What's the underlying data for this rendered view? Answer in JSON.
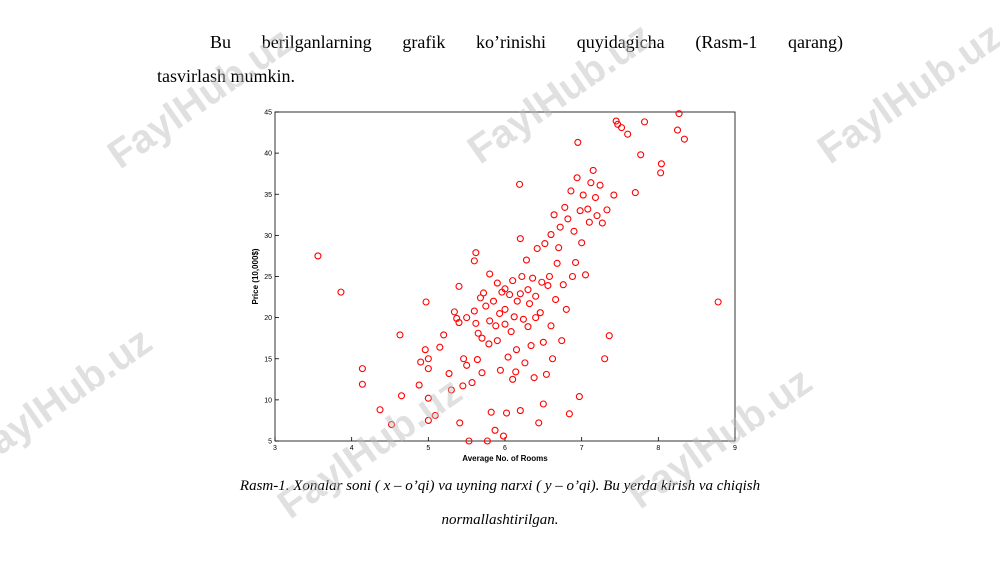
{
  "paragraph": [
    "Bu berilganlarning grafik ko’rinishi quyidagicha (Rasm-1 qarang)",
    "tasvirlash mumkin."
  ],
  "caption": [
    "Rasm-1. Xonalar soni ( x – o’qi) va uyning narxi ( y – o’qi). Bu yerda kirish va chiqish",
    "normallashtirilgan."
  ],
  "watermark": "FaylHub.uz",
  "chart_data": {
    "type": "scatter",
    "xlabel": "Average No. of Rooms",
    "ylabel": "Price (10,000$)",
    "color": "#ff0000",
    "xlim": [
      3,
      9
    ],
    "ylim": [
      5,
      45
    ],
    "xticks": [
      3,
      4,
      5,
      6,
      7,
      8,
      9
    ],
    "yticks": [
      5,
      10,
      15,
      20,
      25,
      30,
      35,
      40,
      45
    ],
    "x": [
      3.56,
      3.86,
      4.14,
      4.14,
      4.37,
      4.52,
      4.63,
      4.65,
      4.88,
      4.9,
      4.96,
      4.97,
      5.0,
      5.0,
      5.0,
      5.0,
      5.09,
      5.15,
      5.2,
      5.27,
      5.3,
      5.34,
      5.37,
      5.4,
      5.4,
      5.41,
      5.45,
      5.46,
      5.5,
      5.53,
      5.57,
      5.6,
      5.62,
      5.6,
      5.62,
      5.64,
      5.65,
      5.68,
      5.7,
      5.72,
      5.75,
      5.77,
      5.79,
      5.8,
      5.82,
      5.85,
      5.87,
      5.88,
      5.9,
      5.93,
      5.94,
      5.96,
      5.98,
      6.0,
      6.0,
      6.02,
      6.04,
      6.06,
      6.08,
      6.1,
      6.12,
      6.14,
      6.16,
      6.19,
      6.2,
      6.2,
      6.22,
      6.24,
      6.26,
      6.28,
      6.3,
      6.32,
      6.34,
      6.36,
      6.38,
      6.4,
      6.42,
      6.44,
      6.46,
      6.48,
      6.5,
      6.52,
      6.54,
      6.56,
      6.58,
      6.6,
      6.62,
      6.64,
      6.66,
      6.68,
      6.7,
      6.72,
      6.74,
      6.76,
      6.78,
      6.8,
      6.82,
      6.84,
      6.86,
      6.88,
      6.9,
      6.92,
      6.94,
      6.95,
      6.97,
      6.98,
      7.0,
      7.02,
      7.05,
      7.08,
      7.1,
      7.12,
      7.15,
      7.18,
      7.2,
      7.24,
      7.27,
      7.3,
      7.33,
      7.36,
      7.42,
      7.45,
      7.47,
      7.52,
      7.6,
      7.7,
      7.77,
      7.82,
      8.03,
      8.04,
      8.25,
      8.27,
      8.34,
      8.78,
      6.5,
      6.1,
      5.9,
      6.3,
      6.2,
      5.8,
      6.0,
      6.4,
      6.15,
      5.7,
      6.6,
      5.5
    ],
    "y": [
      27.5,
      23.1,
      13.8,
      11.9,
      8.8,
      7.0,
      17.9,
      10.5,
      11.8,
      14.6,
      16.1,
      21.9,
      15.0,
      13.8,
      7.5,
      10.2,
      8.1,
      16.4,
      17.9,
      13.2,
      11.2,
      20.7,
      19.9,
      23.8,
      19.4,
      7.2,
      11.7,
      15.0,
      14.2,
      5.0,
      12.1,
      26.9,
      27.9,
      20.8,
      19.3,
      14.9,
      18.1,
      22.4,
      13.3,
      23.0,
      21.4,
      5.0,
      16.8,
      19.6,
      8.5,
      22.0,
      6.3,
      19.0,
      24.2,
      20.5,
      13.6,
      23.1,
      5.6,
      21.0,
      19.2,
      8.4,
      15.2,
      22.8,
      18.3,
      24.5,
      20.1,
      13.4,
      22.0,
      36.2,
      29.6,
      8.7,
      25.0,
      19.8,
      14.5,
      27.0,
      23.4,
      21.7,
      16.6,
      24.8,
      12.7,
      22.6,
      28.4,
      7.2,
      20.6,
      24.3,
      17.0,
      29.0,
      13.1,
      23.9,
      25.0,
      30.1,
      15.0,
      32.5,
      22.2,
      26.6,
      28.5,
      31.0,
      17.2,
      24.0,
      33.4,
      21.0,
      32.0,
      8.3,
      35.4,
      25.0,
      30.5,
      26.7,
      37.0,
      41.3,
      10.4,
      33.0,
      29.1,
      34.9,
      25.2,
      33.2,
      31.6,
      36.4,
      37.9,
      34.6,
      32.4,
      36.1,
      31.5,
      15.0,
      33.1,
      17.8,
      34.9,
      43.9,
      43.5,
      43.1,
      42.3,
      35.2,
      39.8,
      43.8,
      37.6,
      38.7,
      42.8,
      44.8,
      41.7,
      21.9,
      9.5,
      12.5,
      17.2,
      18.9,
      22.9,
      25.3,
      23.5,
      20.0,
      16.1,
      17.5,
      19.0,
      20.0
    ]
  }
}
